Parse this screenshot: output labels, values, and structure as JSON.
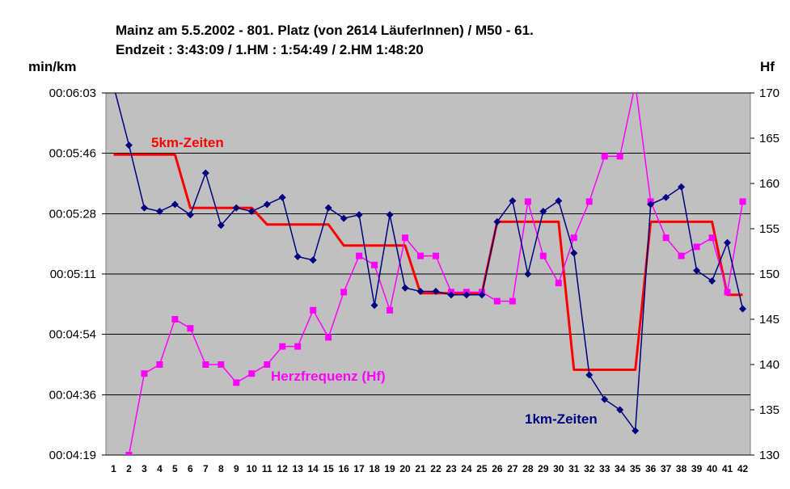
{
  "chart_data": {
    "type": "line",
    "title_line1": "Mainz am 5.5.2002 - 801. Platz (von 2614 LäuferInnen) / M50 - 61.",
    "title_line2": "Endzeit : 3:43:09  / 1.HM : 1:54:49  / 2.HM  1:48:20",
    "ylabel_left": "min/km",
    "ylabel_right": "Hf",
    "x": [
      1,
      2,
      3,
      4,
      5,
      6,
      7,
      8,
      9,
      10,
      11,
      12,
      13,
      14,
      15,
      16,
      17,
      18,
      19,
      20,
      21,
      22,
      23,
      24,
      25,
      26,
      27,
      28,
      29,
      30,
      31,
      32,
      33,
      34,
      35,
      36,
      37,
      38,
      39,
      40,
      41,
      42
    ],
    "y_left": {
      "ticks": [
        "00:04:19",
        "00:04:36",
        "00:04:54",
        "00:05:11",
        "00:05:28",
        "00:05:46",
        "00:06:03"
      ],
      "tick_seconds": [
        259,
        276.3,
        293.7,
        311,
        328.3,
        345.7,
        363
      ],
      "range_seconds": [
        259,
        363
      ]
    },
    "y_right": {
      "ticks": [
        "130",
        "135",
        "140",
        "145",
        "150",
        "155",
        "160",
        "165",
        "170"
      ],
      "range": [
        130,
        170
      ]
    },
    "series": [
      {
        "name": "1km-Zeiten",
        "axis": "left",
        "color": "#000080",
        "marker": "diamond",
        "values_seconds": [
          365,
          348,
          330,
          329,
          331,
          328,
          340,
          325,
          330,
          329,
          331,
          333,
          316,
          315,
          330,
          327,
          328,
          302,
          328,
          307,
          306,
          306,
          305,
          305,
          305,
          326,
          332,
          311,
          329,
          332,
          317,
          282,
          275,
          272,
          266,
          331,
          333,
          336,
          312,
          309,
          320,
          301
        ]
      },
      {
        "name": "5km-Zeiten",
        "axis": "left",
        "color": "#ff0000",
        "steps_seconds": [
          [
            1,
            345.3
          ],
          [
            5,
            345.3
          ],
          [
            6,
            330.0
          ],
          [
            10,
            330.0
          ],
          [
            11,
            325.2
          ],
          [
            15,
            325.2
          ],
          [
            16,
            319.2
          ],
          [
            20,
            319.2
          ],
          [
            21,
            305.5
          ],
          [
            25,
            305.5
          ],
          [
            26,
            326.0
          ],
          [
            30,
            326.0
          ],
          [
            31,
            283.5
          ],
          [
            35,
            283.5
          ],
          [
            36,
            326.0
          ],
          [
            40,
            326.0
          ],
          [
            41,
            305.0
          ],
          [
            42,
            305.0
          ]
        ]
      },
      {
        "name": "Herzfrequenz (Hf)",
        "axis": "right",
        "color": "#ff00ff",
        "marker": "square",
        "values": [
          null,
          130,
          139,
          140,
          145,
          144,
          140,
          140,
          138,
          139,
          140,
          142,
          142,
          146,
          143,
          148,
          152,
          151,
          146,
          154,
          152,
          152,
          148,
          148,
          148,
          147,
          147,
          158,
          152,
          149,
          154,
          158,
          163,
          163,
          171,
          158,
          154,
          152,
          153,
          154,
          148,
          158
        ]
      }
    ],
    "annotations": [
      {
        "text": "5km-Zeiten",
        "color": "#ff0000"
      },
      {
        "text": "Herzfrequenz (Hf)",
        "color": "#ff00ff"
      },
      {
        "text": "1km-Zeiten",
        "color": "#000080"
      }
    ],
    "grid": true,
    "plot_background": "#c0c0c0"
  }
}
